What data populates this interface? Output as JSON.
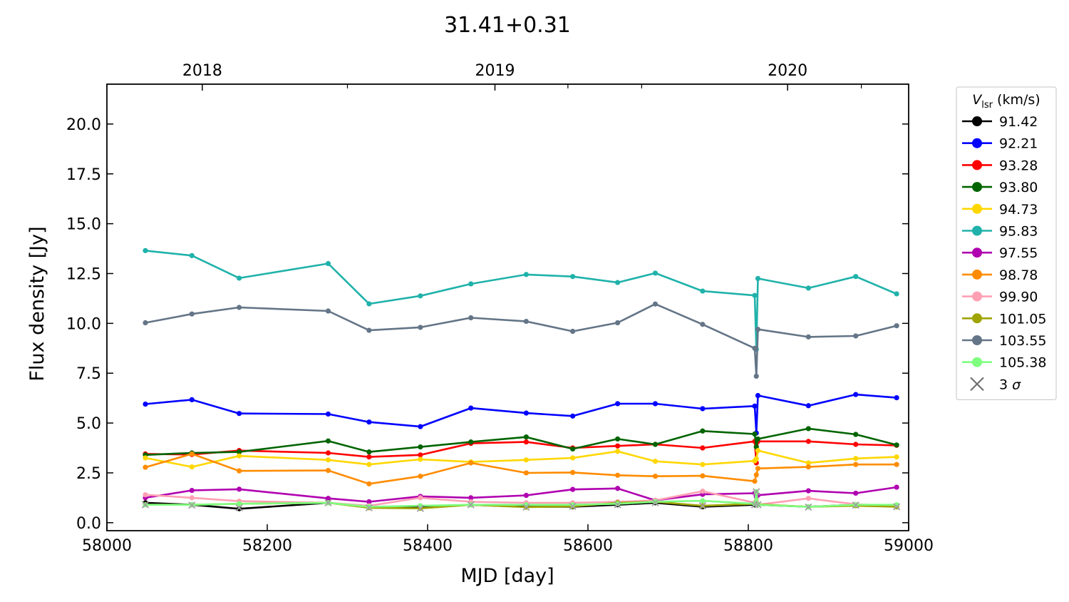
{
  "chart_data": {
    "type": "line",
    "title": "31.41+0.31",
    "xlabel": "MJD [day]",
    "ylabel": "Flux density [Jy]",
    "xlim": [
      58000,
      59000
    ],
    "ylim": [
      -0.4,
      22.0
    ],
    "x_ticks": [
      58000,
      58200,
      58400,
      58600,
      58800,
      59000
    ],
    "y_ticks": [
      0.0,
      2.5,
      5.0,
      7.5,
      10.0,
      12.5,
      15.0,
      17.5,
      20.0
    ],
    "y_tick_labels": [
      "0.0",
      "2.5",
      "5.0",
      "7.5",
      "10.0",
      "12.5",
      "15.0",
      "17.5",
      "20.0"
    ],
    "top_axis": {
      "labels": [
        "2018",
        "2019",
        "2020"
      ],
      "positions_mjd": [
        58119,
        58484,
        58849
      ],
      "minor_positions_mjd": [
        58300,
        58575,
        58667,
        58941
      ]
    },
    "grid": false,
    "legend": {
      "title_main": "V",
      "title_sub": "lsr",
      "title_rest": " (km/s)",
      "placement": "outside-right",
      "sigma_label_prefix": "3 ",
      "sigma_symbol": "σ"
    },
    "x": [
      58048,
      58106,
      58165,
      58276,
      58327,
      58391,
      58454,
      58523,
      58581,
      58637,
      58684,
      58743,
      58808,
      58810,
      58812,
      58875,
      58934,
      58985
    ],
    "series": [
      {
        "name": "91.42",
        "color": "#000000",
        "values": [
          1.0,
          0.9,
          0.7,
          1.0,
          0.8,
          0.8,
          0.9,
          0.8,
          0.8,
          0.9,
          1.0,
          0.8,
          0.9,
          0.9,
          0.9,
          0.8,
          0.9,
          0.8
        ]
      },
      {
        "name": "92.21",
        "color": "#0000ff",
        "values": [
          5.95,
          6.17,
          5.48,
          5.45,
          5.05,
          4.82,
          5.75,
          5.5,
          5.35,
          5.97,
          5.97,
          5.72,
          5.85,
          4.5,
          6.38,
          5.87,
          6.43,
          6.27
        ]
      },
      {
        "name": "93.28",
        "color": "#ff0000",
        "values": [
          3.45,
          3.42,
          3.62,
          3.5,
          3.3,
          3.4,
          3.98,
          4.05,
          3.75,
          3.85,
          3.93,
          3.75,
          4.08,
          3.0,
          4.08,
          4.08,
          3.93,
          3.88
        ]
      },
      {
        "name": "93.80",
        "color": "#006400",
        "values": [
          3.4,
          3.5,
          3.55,
          4.1,
          3.55,
          3.8,
          4.05,
          4.3,
          3.7,
          4.2,
          3.93,
          4.6,
          4.45,
          3.8,
          4.2,
          4.72,
          4.43,
          3.9
        ]
      },
      {
        "name": "94.73",
        "color": "#ffd700",
        "values": [
          3.25,
          2.8,
          3.35,
          3.15,
          2.92,
          3.18,
          3.05,
          3.15,
          3.25,
          3.58,
          3.08,
          2.92,
          3.1,
          3.2,
          3.62,
          3.0,
          3.22,
          3.3
        ]
      },
      {
        "name": "95.83",
        "color": "#20b2aa",
        "values": [
          13.65,
          13.4,
          12.27,
          13.0,
          10.98,
          11.38,
          11.98,
          12.45,
          12.35,
          12.05,
          12.52,
          11.62,
          11.4,
          8.7,
          12.25,
          11.77,
          12.35,
          11.48
        ]
      },
      {
        "name": "97.55",
        "color": "#b000b0",
        "values": [
          1.25,
          1.62,
          1.68,
          1.22,
          1.05,
          1.32,
          1.25,
          1.37,
          1.67,
          1.72,
          1.12,
          1.42,
          1.48,
          1.3,
          1.38,
          1.6,
          1.48,
          1.78
        ]
      },
      {
        "name": "98.78",
        "color": "#ff8c00",
        "values": [
          2.78,
          3.45,
          2.6,
          2.62,
          1.95,
          2.33,
          3.0,
          2.5,
          2.52,
          2.38,
          2.33,
          2.35,
          2.08,
          2.4,
          2.72,
          2.8,
          2.92,
          2.92
        ]
      },
      {
        "name": "99.90",
        "color": "#ffa0b4",
        "values": [
          1.4,
          1.25,
          1.08,
          1.0,
          0.85,
          1.25,
          1.05,
          1.0,
          1.0,
          1.05,
          1.12,
          1.58,
          1.0,
          1.1,
          0.9,
          1.22,
          0.92,
          0.85
        ]
      },
      {
        "name": "101.05",
        "color": "#9fa400",
        "values": [
          0.9,
          0.9,
          0.95,
          1.0,
          0.75,
          0.72,
          0.9,
          0.78,
          0.82,
          1.0,
          1.05,
          0.85,
          0.95,
          0.95,
          0.92,
          0.8,
          0.85,
          0.8
        ]
      },
      {
        "name": "103.55",
        "color": "#647587",
        "values": [
          10.03,
          10.47,
          10.8,
          10.62,
          9.65,
          9.8,
          10.28,
          10.1,
          9.6,
          10.03,
          10.97,
          9.95,
          8.75,
          7.35,
          9.7,
          9.32,
          9.37,
          9.88
        ]
      },
      {
        "name": "105.38",
        "color": "#7fff7f",
        "values": [
          0.9,
          0.9,
          0.95,
          1.0,
          0.8,
          0.85,
          0.9,
          0.9,
          0.9,
          0.95,
          1.05,
          1.1,
          0.95,
          1.55,
          0.9,
          0.8,
          0.9,
          0.9
        ]
      }
    ],
    "upper_limits_3sigma": {
      "color": "#a0a0a0",
      "x": [
        58048,
        58106,
        58165,
        58276,
        58327,
        58391,
        58454,
        58523,
        58581,
        58637,
        58684,
        58743,
        58808,
        58810,
        58812,
        58875,
        58934,
        58985
      ],
      "values": [
        0.9,
        0.88,
        0.75,
        1.0,
        0.75,
        0.72,
        0.9,
        0.78,
        0.82,
        0.9,
        1.0,
        0.85,
        0.9,
        1.55,
        0.9,
        0.78,
        0.88,
        0.8
      ]
    }
  }
}
